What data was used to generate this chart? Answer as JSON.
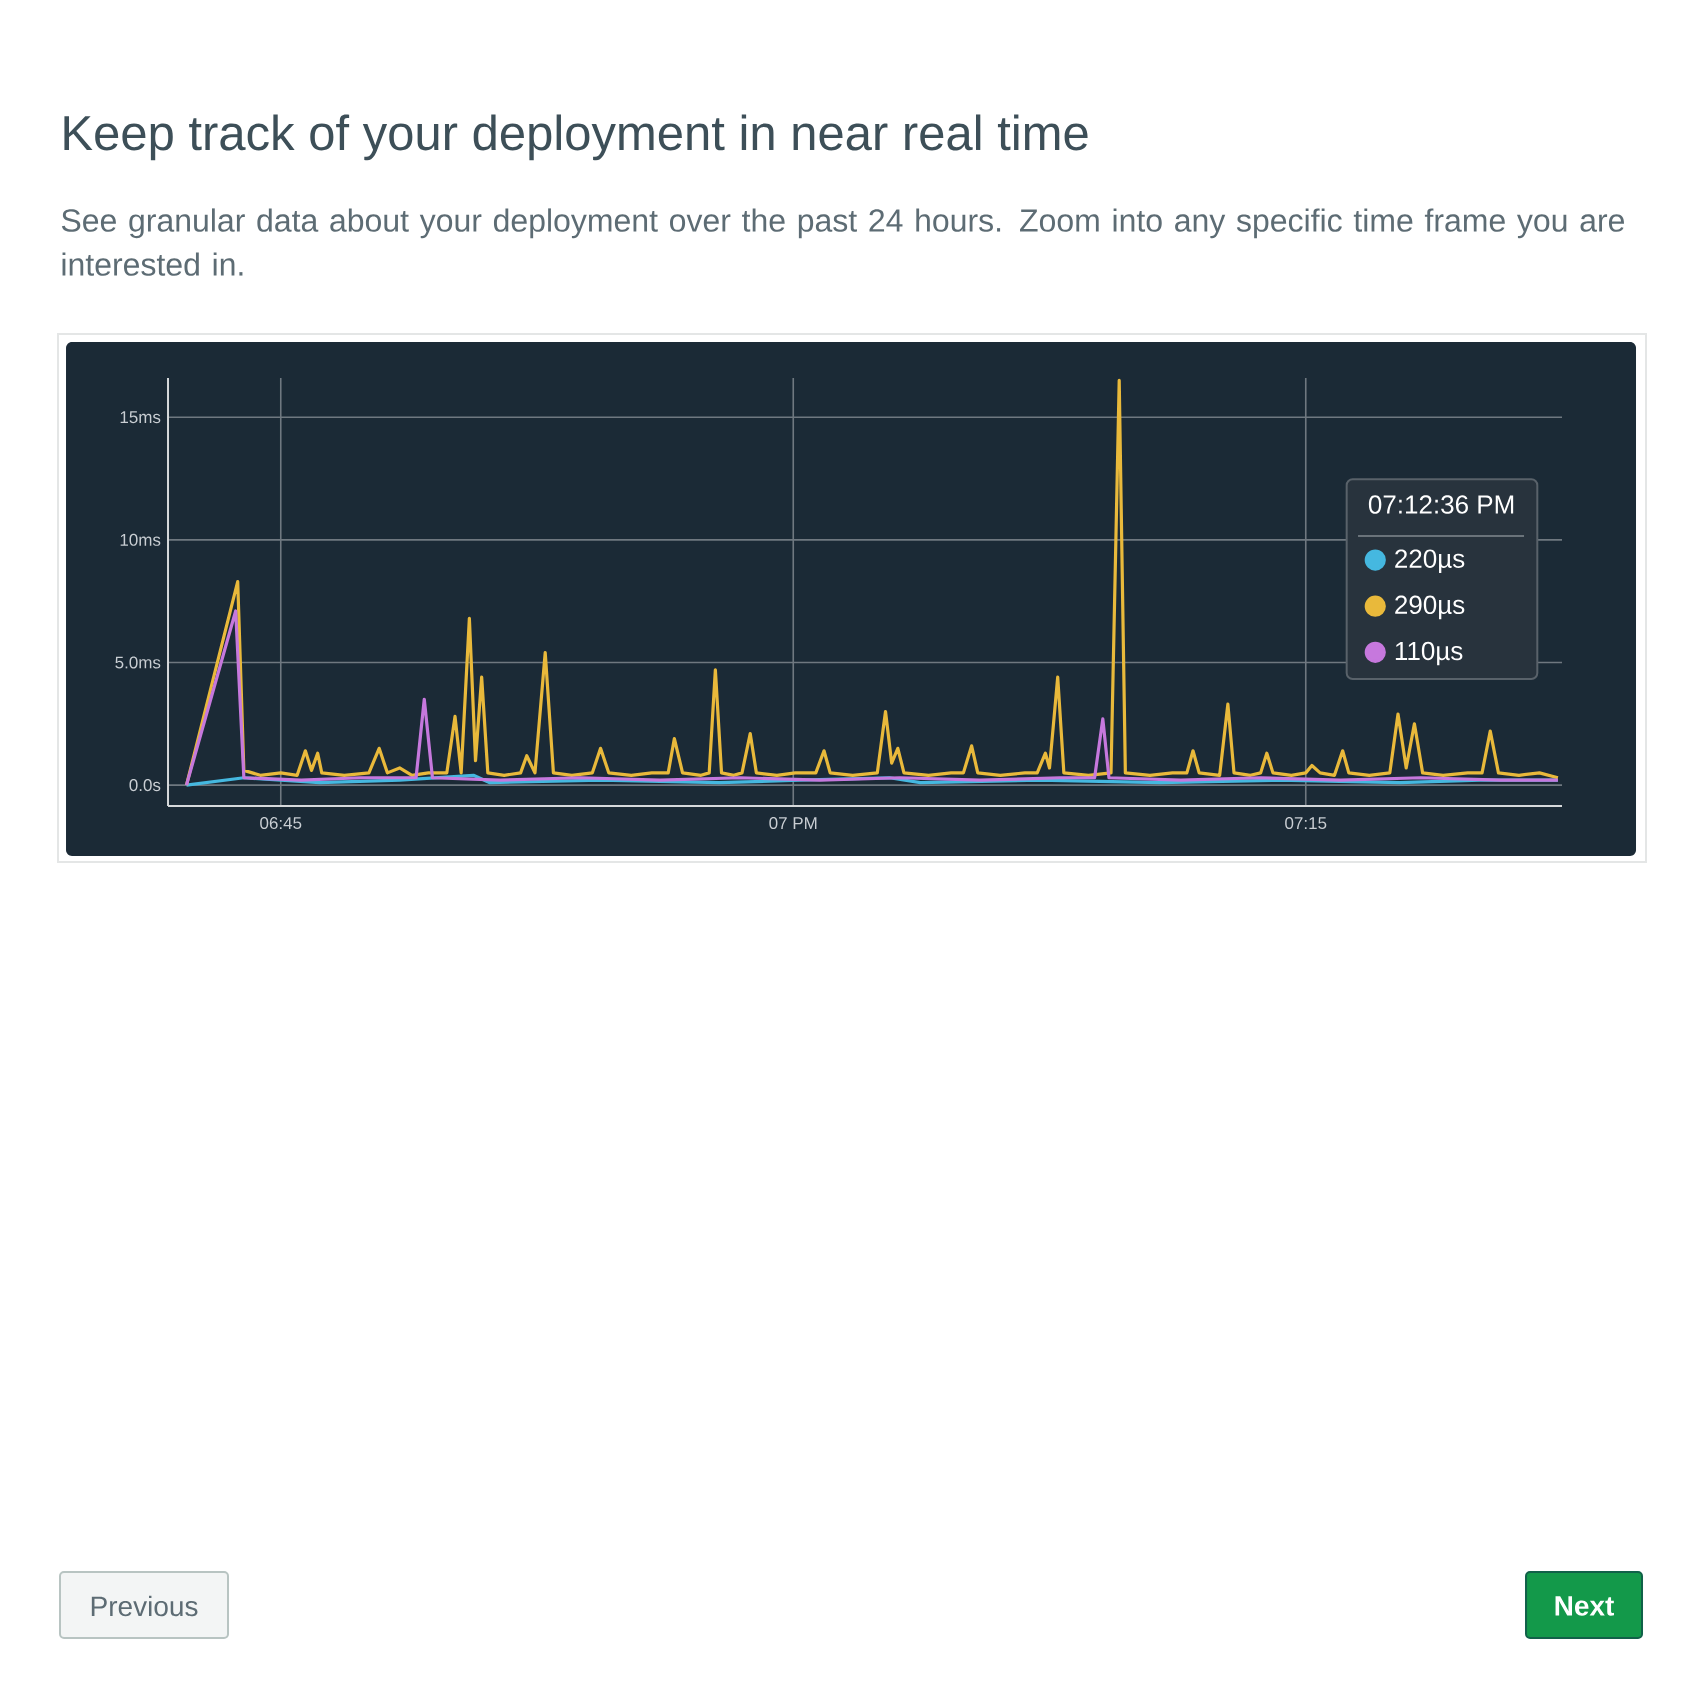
{
  "chart_data": {
    "type": "line",
    "title": "Keep track of your deployment in near real time",
    "subtitle": "See granular data about your deployment over the past 24 hours. Zoom into any specific time frame you are interested in.",
    "xlim": [
      6.695,
      7.375
    ],
    "xticks": [
      {
        "value": 6.75,
        "label": "06:45"
      },
      {
        "value": 7,
        "label": "07 PM"
      },
      {
        "value": 7.25,
        "label": "07:15"
      }
    ],
    "ylim": [
      -0.85,
      16.6
    ],
    "yticks": [
      {
        "value": 0,
        "label": "0.0s"
      },
      {
        "value": 5,
        "label": "5.0ms"
      },
      {
        "value": 10,
        "label": "10ms"
      },
      {
        "value": 15,
        "label": "15ms"
      }
    ],
    "grid": true,
    "legend": "right",
    "legend_title": "07:12:36 PM",
    "series": [
      {
        "name": "220µs",
        "color": "#45b8e0",
        "x": [
          6.704,
          6.732,
          6.769,
          6.808,
          6.844,
          6.852,
          6.906,
          6.964,
          7.003,
          7.047,
          7.062,
          7.12,
          7.179,
          7.237,
          7.296,
          7.335,
          7.373
        ],
        "values": [
          0.0,
          0.3,
          0.1,
          0.2,
          0.4,
          0.1,
          0.2,
          0.1,
          0.2,
          0.3,
          0.1,
          0.2,
          0.1,
          0.2,
          0.1,
          0.2,
          0.2
        ]
      },
      {
        "name": "290µs",
        "color": "#e9b93b",
        "x": [
          6.704,
          6.729,
          6.732,
          6.74,
          6.75,
          6.758,
          6.762,
          6.765,
          6.768,
          6.77,
          6.781,
          6.793,
          6.798,
          6.802,
          6.808,
          6.814,
          6.822,
          6.831,
          6.835,
          6.838,
          6.842,
          6.845,
          6.848,
          6.851,
          6.859,
          6.867,
          6.87,
          6.874,
          6.879,
          6.883,
          6.892,
          6.902,
          6.906,
          6.91,
          6.921,
          6.931,
          6.939,
          6.942,
          6.946,
          6.955,
          6.959,
          6.962,
          6.965,
          6.971,
          6.975,
          6.979,
          6.982,
          6.992,
          7.001,
          7.011,
          7.015,
          7.018,
          7.029,
          7.041,
          7.045,
          7.048,
          7.051,
          7.054,
          7.066,
          7.077,
          7.083,
          7.087,
          7.09,
          7.101,
          7.113,
          7.119,
          7.123,
          7.125,
          7.129,
          7.132,
          7.144,
          7.155,
          7.159,
          7.162,
          7.174,
          7.185,
          7.192,
          7.195,
          7.198,
          7.208,
          7.212,
          7.215,
          7.223,
          7.228,
          7.231,
          7.234,
          7.243,
          7.25,
          7.253,
          7.257,
          7.264,
          7.268,
          7.271,
          7.281,
          7.291,
          7.295,
          7.299,
          7.303,
          7.307,
          7.317,
          7.329,
          7.336,
          7.34,
          7.344,
          7.354,
          7.364,
          7.373
        ],
        "values": [
          0.0,
          8.3,
          0.6,
          0.4,
          0.5,
          0.4,
          1.4,
          0.6,
          1.3,
          0.5,
          0.4,
          0.5,
          1.5,
          0.5,
          0.7,
          0.4,
          0.5,
          0.5,
          2.8,
          0.5,
          6.8,
          1.0,
          4.4,
          0.5,
          0.4,
          0.5,
          1.2,
          0.5,
          5.4,
          0.5,
          0.4,
          0.5,
          1.5,
          0.5,
          0.4,
          0.5,
          0.5,
          1.9,
          0.5,
          0.4,
          0.5,
          4.7,
          0.5,
          0.4,
          0.5,
          2.1,
          0.5,
          0.4,
          0.5,
          0.5,
          1.4,
          0.5,
          0.4,
          0.5,
          3.0,
          0.9,
          1.5,
          0.5,
          0.4,
          0.5,
          0.5,
          1.6,
          0.5,
          0.4,
          0.5,
          0.5,
          1.3,
          0.7,
          4.4,
          0.5,
          0.4,
          0.5,
          16.5,
          0.5,
          0.4,
          0.5,
          0.5,
          1.4,
          0.5,
          0.4,
          3.3,
          0.5,
          0.4,
          0.5,
          1.3,
          0.5,
          0.4,
          0.5,
          0.8,
          0.5,
          0.4,
          1.4,
          0.5,
          0.4,
          0.5,
          2.9,
          0.7,
          2.5,
          0.5,
          0.4,
          0.5,
          0.5,
          2.2,
          0.5,
          0.4,
          0.5,
          0.3
        ]
      },
      {
        "name": "110µs",
        "color": "#c678dd",
        "x": [
          6.704,
          6.728,
          6.732,
          6.76,
          6.789,
          6.816,
          6.82,
          6.824,
          6.857,
          6.896,
          6.935,
          6.974,
          7.013,
          7.052,
          7.091,
          7.13,
          7.147,
          7.151,
          7.154,
          7.189,
          7.228,
          7.267,
          7.306,
          7.345,
          7.373
        ],
        "values": [
          0.0,
          7.1,
          0.3,
          0.2,
          0.3,
          0.3,
          3.5,
          0.3,
          0.2,
          0.3,
          0.2,
          0.3,
          0.2,
          0.3,
          0.2,
          0.3,
          0.3,
          2.7,
          0.3,
          0.2,
          0.3,
          0.2,
          0.3,
          0.2,
          0.2
        ]
      }
    ],
    "annotations": [
      "Previous",
      "Next"
    ]
  }
}
